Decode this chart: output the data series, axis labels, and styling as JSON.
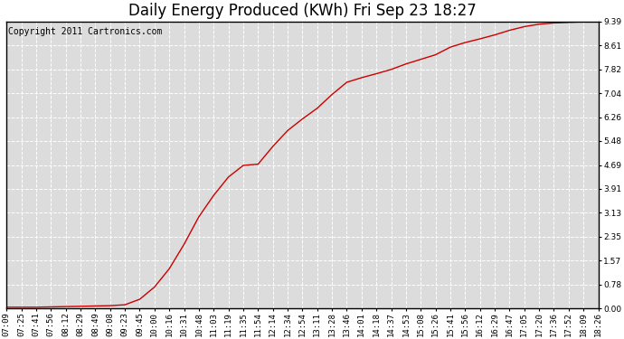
{
  "title": "Daily Energy Produced (KWh) Fri Sep 23 18:27",
  "copyright_text": "Copyright 2011 Cartronics.com",
  "line_color": "#cc0000",
  "background_color": "#ffffff",
  "plot_bg_color": "#dcdcdc",
  "grid_color": "#ffffff",
  "yticks": [
    0.0,
    0.78,
    1.57,
    2.35,
    3.13,
    3.91,
    4.69,
    5.48,
    6.26,
    7.04,
    7.82,
    8.61,
    9.39
  ],
  "ymax": 9.39,
  "xtick_labels": [
    "07:09",
    "07:25",
    "07:41",
    "07:56",
    "08:12",
    "08:29",
    "08:49",
    "09:08",
    "09:23",
    "09:45",
    "10:00",
    "10:16",
    "10:31",
    "10:48",
    "11:03",
    "11:19",
    "11:35",
    "11:54",
    "12:14",
    "12:34",
    "12:54",
    "13:11",
    "13:28",
    "13:46",
    "14:01",
    "14:18",
    "14:37",
    "14:53",
    "15:08",
    "15:26",
    "15:41",
    "15:56",
    "16:12",
    "16:29",
    "16:47",
    "17:05",
    "17:20",
    "17:36",
    "17:52",
    "18:09",
    "18:26"
  ],
  "data_y": [
    0.04,
    0.04,
    0.04,
    0.05,
    0.06,
    0.07,
    0.08,
    0.09,
    0.12,
    0.3,
    0.7,
    1.3,
    2.1,
    3.0,
    3.7,
    4.3,
    4.68,
    4.72,
    5.3,
    5.82,
    6.2,
    6.55,
    7.0,
    7.4,
    7.55,
    7.68,
    7.82,
    8.0,
    8.15,
    8.3,
    8.55,
    8.7,
    8.82,
    8.95,
    9.1,
    9.22,
    9.3,
    9.34,
    9.36,
    9.38,
    9.39
  ],
  "title_fontsize": 12,
  "tick_fontsize": 6.5,
  "copyright_fontsize": 7
}
